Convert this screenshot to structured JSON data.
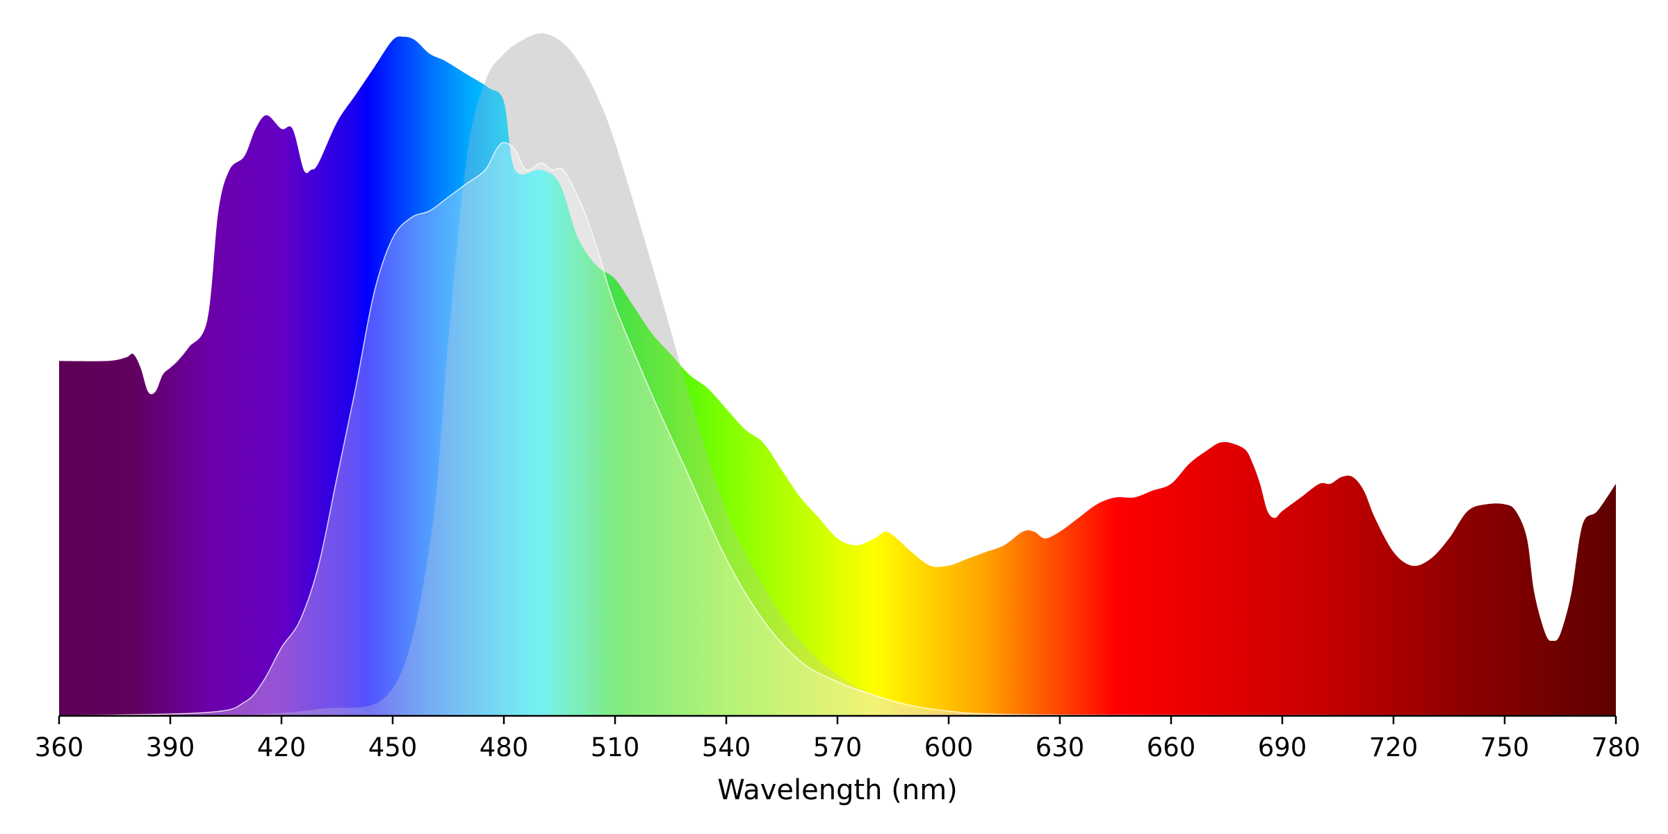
{
  "chart_data": {
    "type": "area",
    "title": "",
    "xlabel": "Wavelength (nm)",
    "ylabel": "",
    "xlim": [
      360,
      780
    ],
    "ylim": [
      0,
      1
    ],
    "x_ticks": [
      360,
      390,
      420,
      450,
      480,
      510,
      540,
      570,
      600,
      630,
      660,
      690,
      720,
      750,
      780
    ],
    "grid": false,
    "legend": "none",
    "y_axis_visible": false,
    "spectrum_colors": [
      {
        "nm": 360,
        "color": "#5e0056"
      },
      {
        "nm": 380,
        "color": "#62005e"
      },
      {
        "nm": 400,
        "color": "#6c00a8"
      },
      {
        "nm": 420,
        "color": "#6500c4"
      },
      {
        "nm": 440,
        "color": "#1800f2"
      },
      {
        "nm": 443,
        "color": "#0000ff"
      },
      {
        "nm": 460,
        "color": "#0070ff"
      },
      {
        "nm": 470,
        "color": "#00a6ff"
      },
      {
        "nm": 490,
        "color": "#00ffff"
      },
      {
        "nm": 510,
        "color": "#18ee18"
      },
      {
        "nm": 540,
        "color": "#7fff00"
      },
      {
        "nm": 580,
        "color": "#ffff00"
      },
      {
        "nm": 610,
        "color": "#ffa200"
      },
      {
        "nm": 645,
        "color": "#ff0000"
      },
      {
        "nm": 700,
        "color": "#c80000"
      },
      {
        "nm": 740,
        "color": "#8c0000"
      },
      {
        "nm": 780,
        "color": "#5e0000"
      }
    ],
    "series": [
      {
        "style": "gray-background",
        "color": "#e5e5e5",
        "x": [
          360,
          400,
          430,
          450,
          460,
          465,
          470,
          475,
          480,
          485,
          490,
          495,
          500,
          505,
          510,
          520,
          530,
          540,
          550,
          560,
          570,
          580,
          590,
          600,
          620,
          650,
          700,
          780
        ],
        "values": [
          0,
          0,
          0.01,
          0.04,
          0.25,
          0.55,
          0.82,
          0.93,
          0.97,
          0.99,
          1.0,
          0.99,
          0.96,
          0.91,
          0.84,
          0.66,
          0.47,
          0.3,
          0.19,
          0.11,
          0.06,
          0.03,
          0.012,
          0.005,
          0.001,
          0,
          0,
          0
        ]
      },
      {
        "style": "spectrum-fill",
        "x": [
          360,
          373,
          378,
          380,
          382,
          384,
          386,
          388,
          390,
          392,
          395,
          400,
          403,
          406,
          410,
          413,
          416,
          420,
          423,
          426,
          428,
          430,
          435,
          440,
          445,
          450,
          453,
          456,
          460,
          464,
          470,
          476,
          480,
          483,
          490,
          495,
          500,
          505,
          510,
          515,
          520,
          525,
          530,
          535,
          540,
          545,
          550,
          555,
          560,
          565,
          570,
          575,
          580,
          583,
          586,
          590,
          595,
          600,
          605,
          610,
          615,
          620,
          623,
          626,
          630,
          635,
          640,
          645,
          650,
          655,
          660,
          665,
          670,
          673,
          676,
          680,
          682,
          684,
          686,
          688,
          690,
          695,
          700,
          703,
          706,
          709,
          712,
          715,
          720,
          725,
          730,
          735,
          740,
          745,
          750,
          753,
          756,
          758,
          761,
          763,
          765,
          768,
          771,
          775,
          780
        ],
        "values": [
          0.52,
          0.52,
          0.525,
          0.53,
          0.51,
          0.475,
          0.475,
          0.5,
          0.51,
          0.52,
          0.54,
          0.58,
          0.74,
          0.8,
          0.82,
          0.86,
          0.88,
          0.86,
          0.86,
          0.8,
          0.8,
          0.81,
          0.87,
          0.91,
          0.95,
          0.99,
          0.995,
          0.99,
          0.97,
          0.96,
          0.94,
          0.92,
          0.9,
          0.8,
          0.8,
          0.78,
          0.7,
          0.66,
          0.64,
          0.6,
          0.56,
          0.53,
          0.5,
          0.48,
          0.45,
          0.42,
          0.4,
          0.36,
          0.32,
          0.29,
          0.26,
          0.25,
          0.26,
          0.27,
          0.26,
          0.24,
          0.22,
          0.22,
          0.23,
          0.24,
          0.25,
          0.27,
          0.27,
          0.26,
          0.27,
          0.29,
          0.31,
          0.32,
          0.32,
          0.33,
          0.34,
          0.37,
          0.39,
          0.4,
          0.4,
          0.39,
          0.37,
          0.34,
          0.3,
          0.29,
          0.3,
          0.32,
          0.34,
          0.34,
          0.35,
          0.35,
          0.33,
          0.29,
          0.24,
          0.22,
          0.23,
          0.26,
          0.3,
          0.31,
          0.31,
          0.3,
          0.26,
          0.18,
          0.12,
          0.11,
          0.12,
          0.18,
          0.28,
          0.3,
          0.34
        ]
      },
      {
        "style": "translucent-overlay",
        "x": [
          360,
          400,
          410,
          415,
          420,
          425,
          430,
          435,
          440,
          445,
          450,
          455,
          460,
          465,
          470,
          475,
          478,
          480,
          483,
          486,
          490,
          493,
          496,
          500,
          503,
          506,
          510,
          520,
          530,
          540,
          550,
          560,
          570,
          580,
          590,
          600,
          610,
          640,
          780
        ],
        "values": [
          0,
          0.005,
          0.02,
          0.05,
          0.1,
          0.14,
          0.22,
          0.35,
          0.48,
          0.62,
          0.7,
          0.73,
          0.74,
          0.76,
          0.78,
          0.8,
          0.83,
          0.84,
          0.83,
          0.8,
          0.81,
          0.8,
          0.8,
          0.76,
          0.72,
          0.67,
          0.6,
          0.47,
          0.35,
          0.23,
          0.14,
          0.08,
          0.05,
          0.03,
          0.015,
          0.007,
          0.003,
          0.001,
          0
        ]
      }
    ]
  }
}
